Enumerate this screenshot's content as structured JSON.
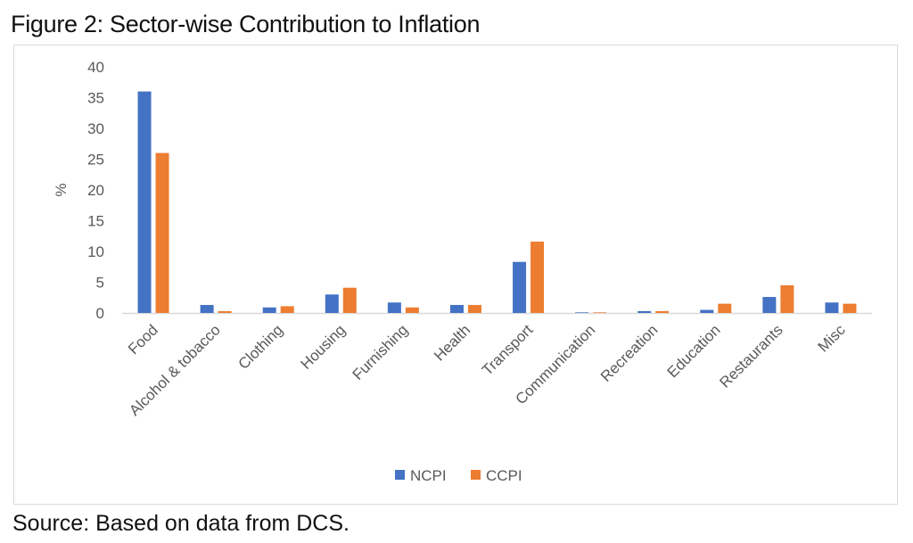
{
  "figure_title": "Figure 2: Sector-wise Contribution to Inflation",
  "source": "Source: Based on data from DCS.",
  "colors": {
    "NCPI": "#4472c4",
    "CCPI": "#ed7d31",
    "axis": "#d9d9d9",
    "text": "#595959"
  },
  "chart_data": {
    "type": "bar",
    "title": "",
    "xlabel": "",
    "ylabel": "%",
    "ylim": [
      0,
      40
    ],
    "yticks": [
      0,
      5,
      10,
      15,
      20,
      25,
      30,
      35,
      40
    ],
    "grid": false,
    "legend": "bottom",
    "categories": [
      "Food",
      "Alcohol & tobacco",
      "Clothing",
      "Housing",
      "Furnishing",
      "Health",
      "Transport",
      "Communication",
      "Recreation",
      "Education",
      "Restaurants",
      "Misc"
    ],
    "series": [
      {
        "name": "NCPI",
        "values": [
          36.0,
          1.3,
          0.9,
          3.0,
          1.7,
          1.3,
          8.3,
          0.1,
          0.3,
          0.5,
          2.6,
          1.7
        ]
      },
      {
        "name": "CCPI",
        "values": [
          26.0,
          0.3,
          1.1,
          4.1,
          0.9,
          1.3,
          11.6,
          0.1,
          0.3,
          1.5,
          4.5,
          1.5
        ]
      }
    ]
  }
}
